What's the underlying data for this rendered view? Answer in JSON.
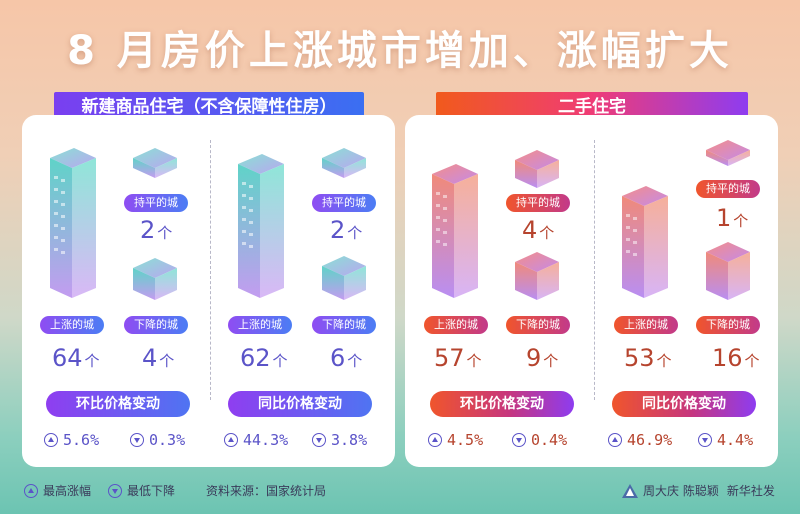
{
  "title": "8 月房价上涨城市增加、涨幅扩大",
  "left_panel": {
    "header": "新建商品住宅（不含保障性住房）",
    "groups": [
      {
        "flat_label": "持平的城市",
        "flat_value": "2",
        "flat_unit": "个",
        "up_label": "上涨的城市",
        "up_value": "64",
        "up_unit": "个",
        "down_label": "下降的城市",
        "down_value": "4",
        "down_unit": "个",
        "change_label": "环比价格变动",
        "max_rise": "5.6%",
        "min_drop": "0.3%"
      },
      {
        "flat_label": "持平的城市",
        "flat_value": "2",
        "flat_unit": "个",
        "up_label": "上涨的城市",
        "up_value": "62",
        "up_unit": "个",
        "down_label": "下降的城市",
        "down_value": "6",
        "down_unit": "个",
        "change_label": "同比价格变动",
        "max_rise": "44.3%",
        "min_drop": "3.8%"
      }
    ]
  },
  "right_panel": {
    "header": "二手住宅",
    "groups": [
      {
        "flat_label": "持平的城市",
        "flat_value": "4",
        "flat_unit": "个",
        "up_label": "上涨的城市",
        "up_value": "57",
        "up_unit": "个",
        "down_label": "下降的城市",
        "down_value": "9",
        "down_unit": "个",
        "change_label": "环比价格变动",
        "max_rise": "4.5%",
        "min_drop": "0.4%"
      },
      {
        "flat_label": "持平的城市",
        "flat_value": "1",
        "flat_unit": "个",
        "up_label": "上涨的城市",
        "up_value": "53",
        "up_unit": "个",
        "down_label": "下降的城市",
        "down_value": "16",
        "down_unit": "个",
        "change_label": "同比价格变动",
        "max_rise": "46.9%",
        "min_drop": "4.4%"
      }
    ]
  },
  "legend": {
    "max_label": "最高涨幅",
    "min_label": "最低下降"
  },
  "source": "资料来源：国家统计局",
  "credit": {
    "authors": "周大庆  陈聪颖",
    "agency": "新华社发"
  },
  "icons": {
    "up": "triangle-up-circle-icon",
    "down": "triangle-down-circle-icon",
    "logo": "xinhua-logo-icon"
  },
  "colors": {
    "blue_text": "#5b54c8",
    "red_text": "#b6442e",
    "blue_accent": "#4f74f2",
    "red_accent": "#f0552c"
  }
}
